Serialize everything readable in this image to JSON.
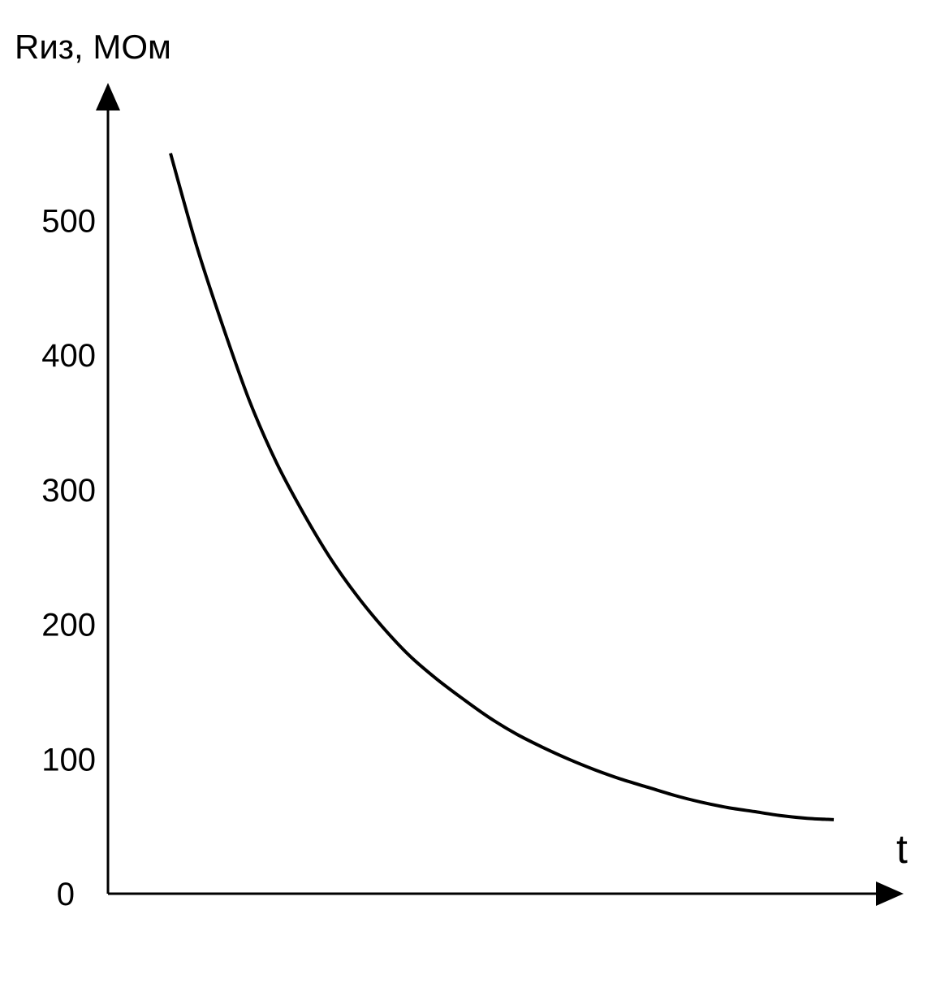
{
  "chart_data": {
    "type": "line",
    "ylabel": "Rиз, МОм",
    "xlabel": "t",
    "ylim": [
      0,
      560
    ],
    "yticks": [
      "0",
      "100",
      "200",
      "300",
      "400",
      "500"
    ],
    "grid": false,
    "legend": "none",
    "x_ticks_labeled": false,
    "line_color": "#000000",
    "series": [
      {
        "values": [
          550,
          480,
          420,
          365,
          320,
          283,
          250,
          222,
          198,
          177,
          160,
          145,
          131,
          119,
          109,
          100,
          92,
          85,
          79,
          73,
          68,
          64,
          61,
          58,
          56,
          55
        ]
      }
    ]
  }
}
